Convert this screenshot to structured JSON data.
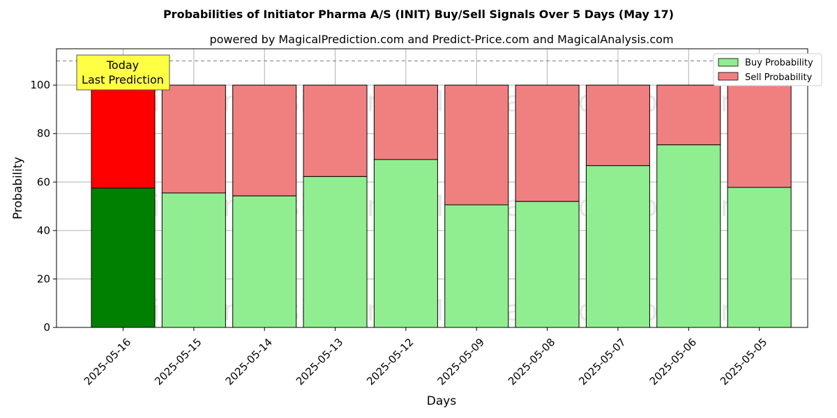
{
  "chart_data": {
    "type": "bar",
    "title": "Probabilities of Initiator Pharma A/S (INIT) Buy/Sell Signals Over 5 Days (May 17)",
    "subtitle": "powered by MagicalPrediction.com and Predict-Price.com and MagicalAnalysis.com",
    "xlabel": "Days",
    "ylabel": "Probability",
    "ylim": [
      0,
      115
    ],
    "yticks": [
      0,
      20,
      40,
      60,
      80,
      100
    ],
    "grid": true,
    "stacked": true,
    "categories": [
      "2025-05-16",
      "2025-05-15",
      "2025-05-14",
      "2025-05-13",
      "2025-05-12",
      "2025-05-09",
      "2025-05-08",
      "2025-05-07",
      "2025-05-06",
      "2025-05-05"
    ],
    "series": [
      {
        "name": "Buy Probability",
        "values": [
          57.5,
          55.5,
          54.3,
          62.3,
          69.3,
          50.6,
          52.0,
          66.8,
          75.4,
          57.8
        ]
      },
      {
        "name": "Sell Probability",
        "values": [
          42.5,
          44.5,
          45.7,
          37.7,
          30.7,
          49.4,
          48.0,
          33.2,
          24.6,
          42.2
        ]
      }
    ],
    "colors": {
      "buy": "#90ee90",
      "sell": "#f08080",
      "buy_highlight": "#008000",
      "sell_highlight": "#ff0000",
      "annotation_bg": "#ffff44"
    },
    "highlight_index": 0,
    "reference_line": 110,
    "legend_position": "top-right",
    "annotation": {
      "line1": "Today",
      "line2": "Last Prediction"
    },
    "watermarks": [
      "MagicalAnalysis.com",
      "MagicalPrediction.com"
    ]
  }
}
